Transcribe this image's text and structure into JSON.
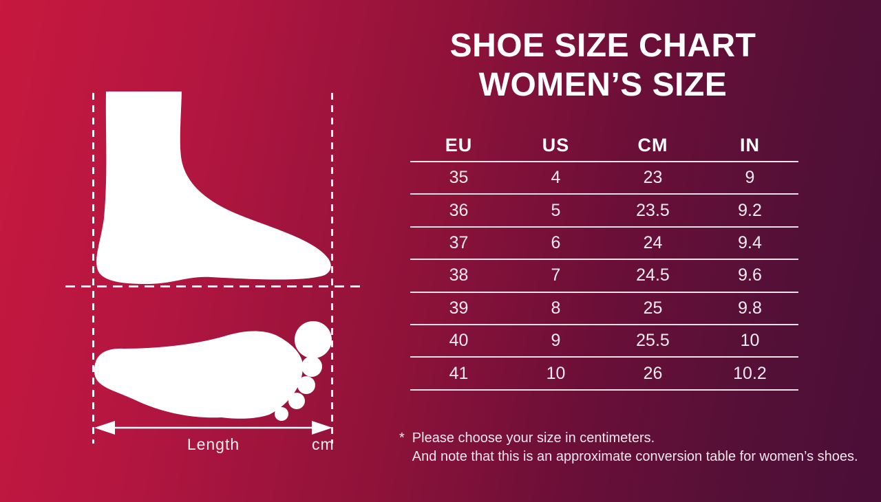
{
  "title": {
    "line1": "SHOE SIZE CHART",
    "line2": "WOMEN’S SIZE"
  },
  "table": {
    "headers": [
      "EU",
      "US",
      "CM",
      "IN"
    ],
    "rows": [
      [
        "35",
        "4",
        "23",
        "9"
      ],
      [
        "36",
        "5",
        "23.5",
        "9.2"
      ],
      [
        "37",
        "6",
        "24",
        "9.4"
      ],
      [
        "38",
        "7",
        "24.5",
        "9.6"
      ],
      [
        "39",
        "8",
        "25",
        "9.8"
      ],
      [
        "40",
        "9",
        "25.5",
        "10"
      ],
      [
        "41",
        "10",
        "26",
        "10.2"
      ]
    ]
  },
  "diagram": {
    "length_label": "Length",
    "unit_label": "cm",
    "illustrations": [
      "foot-side-silhouette-icon",
      "footprint-silhouette-icon",
      "length-measure-arrow-icon"
    ]
  },
  "footnote": {
    "marker": "*",
    "line1": "Please choose your size in centimeters.",
    "line2": "And note that this is an approximate conversion table for women’s shoes."
  },
  "colors": {
    "background_left": "#c7183f",
    "background_right": "#4a0e37",
    "text": "#ffffff",
    "divider_line": "#f5e3ea"
  },
  "chart_data": {
    "type": "table",
    "title": "SHOE SIZE CHART WOMEN'S SIZE",
    "columns": [
      "EU",
      "US",
      "CM",
      "IN"
    ],
    "rows": [
      [
        35,
        4,
        23,
        9
      ],
      [
        36,
        5,
        23.5,
        9.2
      ],
      [
        37,
        6,
        24,
        9.4
      ],
      [
        38,
        7,
        24.5,
        9.6
      ],
      [
        39,
        8,
        25,
        9.8
      ],
      [
        40,
        9,
        25.5,
        10
      ],
      [
        41,
        10,
        26,
        10.2
      ]
    ],
    "notes": "Measurement diagram: foot length measured heel to longest toe, in cm"
  }
}
